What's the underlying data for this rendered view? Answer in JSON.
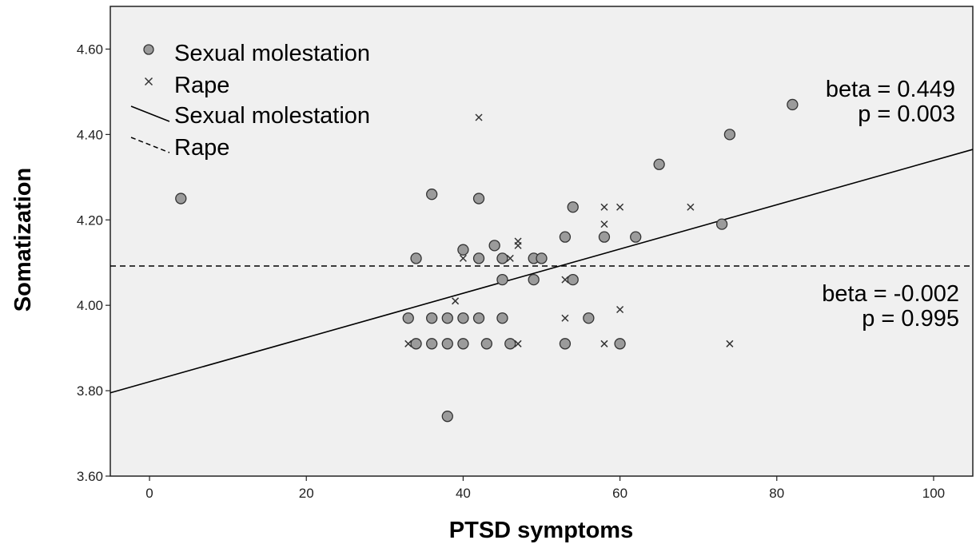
{
  "chart_data": {
    "type": "scatter",
    "xlabel": "PTSD symptoms",
    "ylabel": "Somatization",
    "xlim": [
      -5,
      105
    ],
    "ylim": [
      3.6,
      4.7
    ],
    "xticks": [
      0,
      20,
      40,
      60,
      80,
      100
    ],
    "yticks": [
      3.6,
      3.8,
      4.0,
      4.2,
      4.4,
      4.6
    ],
    "xtick_labels": [
      "0",
      "20",
      "40",
      "60",
      "80",
      "100"
    ],
    "ytick_labels": [
      "3.60",
      "3.80",
      "4.00",
      "4.20",
      "4.40",
      "4.60"
    ],
    "grid": false,
    "legend_position": "top-left",
    "legend": [
      {
        "label": "Sexual molestation",
        "marker": "circle"
      },
      {
        "label": "Rape",
        "marker": "x"
      },
      {
        "label": "Sexual molestation",
        "marker": "solid-line"
      },
      {
        "label": "Rape",
        "marker": "dashed-line"
      }
    ],
    "series": [
      {
        "name": "Sexual molestation",
        "marker": "circle",
        "points": [
          [
            4,
            4.25
          ],
          [
            36,
            4.26
          ],
          [
            42,
            4.25
          ],
          [
            54,
            4.23
          ],
          [
            65,
            4.33
          ],
          [
            74,
            4.4
          ],
          [
            82,
            4.47
          ],
          [
            73,
            4.19
          ],
          [
            53,
            4.16
          ],
          [
            58,
            4.16
          ],
          [
            62,
            4.16
          ],
          [
            44,
            4.14
          ],
          [
            40,
            4.13
          ],
          [
            34,
            4.11
          ],
          [
            42,
            4.11
          ],
          [
            45,
            4.11
          ],
          [
            49,
            4.11
          ],
          [
            50,
            4.11
          ],
          [
            45,
            4.06
          ],
          [
            49,
            4.06
          ],
          [
            54,
            4.06
          ],
          [
            33,
            3.97
          ],
          [
            36,
            3.97
          ],
          [
            38,
            3.97
          ],
          [
            40,
            3.97
          ],
          [
            42,
            3.97
          ],
          [
            45,
            3.97
          ],
          [
            56,
            3.97
          ],
          [
            34,
            3.91
          ],
          [
            36,
            3.91
          ],
          [
            38,
            3.91
          ],
          [
            40,
            3.91
          ],
          [
            43,
            3.91
          ],
          [
            46,
            3.91
          ],
          [
            53,
            3.91
          ],
          [
            60,
            3.91
          ],
          [
            38,
            3.74
          ]
        ]
      },
      {
        "name": "Rape",
        "marker": "x",
        "points": [
          [
            42,
            4.44
          ],
          [
            58,
            4.23
          ],
          [
            60,
            4.23
          ],
          [
            69,
            4.23
          ],
          [
            58,
            4.19
          ],
          [
            47,
            4.15
          ],
          [
            47,
            4.14
          ],
          [
            40,
            4.11
          ],
          [
            46,
            4.11
          ],
          [
            39,
            4.01
          ],
          [
            53,
            4.06
          ],
          [
            60,
            3.99
          ],
          [
            53,
            3.97
          ],
          [
            33,
            3.91
          ],
          [
            47,
            3.91
          ],
          [
            58,
            3.91
          ],
          [
            74,
            3.91
          ]
        ]
      }
    ],
    "fit_lines": [
      {
        "name": "Sexual molestation",
        "style": "solid",
        "from": [
          -5,
          3.795
        ],
        "to": [
          105,
          4.365
        ]
      },
      {
        "name": "Rape",
        "style": "dashed",
        "from": [
          -5,
          4.092
        ],
        "to": [
          105,
          4.092
        ]
      }
    ],
    "annotations": [
      {
        "lines": [
          "beta = 0.449",
          "p = 0.003"
        ],
        "anchor": [
          105,
          4.52
        ]
      },
      {
        "lines": [
          "beta = -0.002",
          "p = 0.995"
        ],
        "anchor": [
          105,
          4.02
        ]
      }
    ]
  }
}
